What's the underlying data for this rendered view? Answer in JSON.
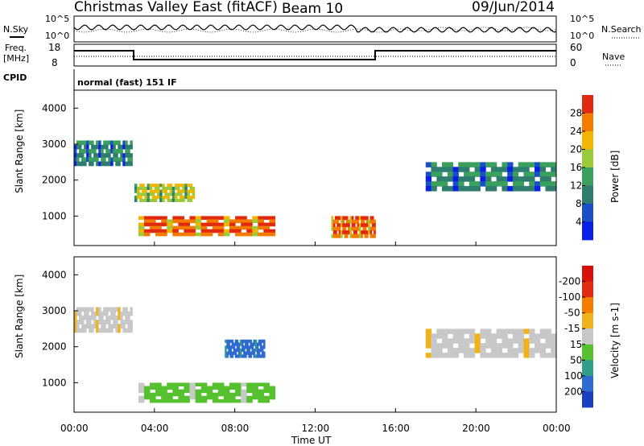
{
  "header": {
    "station": "Christmas Valley East (fitACF)",
    "beam": "Beam 10",
    "date": "09/Jun/2014"
  },
  "noise_panel": {
    "left_label": "N.Sky",
    "right_label": "N.Search",
    "left_ticks": [
      "10^5",
      "10^0"
    ],
    "right_ticks": [
      "10^5",
      "10^0"
    ]
  },
  "freq_panel": {
    "left_label_line1": "Freq.",
    "left_label_line2": "[MHz]",
    "right_label": "Nave",
    "left_ticks": [
      "18",
      "8"
    ],
    "right_ticks": [
      "60",
      "0"
    ]
  },
  "cpid": {
    "label": "CPID",
    "value": "normal (fast) 151 IF"
  },
  "time_axis": {
    "title": "Time UT",
    "ticks": [
      "00:00",
      "04:00",
      "08:00",
      "12:00",
      "16:00",
      "20:00",
      "00:00"
    ]
  },
  "chart_data": [
    {
      "type": "heatmap",
      "name": "power",
      "ylabel": "Slant Range [km]",
      "ylim": [
        180,
        4500
      ],
      "yticks": [
        1000,
        2000,
        3000,
        4000
      ],
      "x_range_hours": [
        0,
        24
      ],
      "colorbar": {
        "label": "Power [dB]",
        "ticks": [
          "4",
          "8",
          "12",
          "16",
          "20",
          "24",
          "28"
        ],
        "colors": [
          "#0a1fe8",
          "#1b4fc8",
          "#2e7d6e",
          "#3ba05e",
          "#9acb3a",
          "#f4b400",
          "#f47a00",
          "#e02a10"
        ]
      },
      "features": [
        {
          "t_start": 0.0,
          "t_end": 2.9,
          "range_start": 2400,
          "range_end": 3100,
          "level": "medium"
        },
        {
          "t_start": 3.0,
          "t_end": 6.0,
          "range_start": 1400,
          "range_end": 1900,
          "level": "high"
        },
        {
          "t_start": 3.2,
          "t_end": 10.0,
          "range_start": 450,
          "range_end": 1000,
          "level": "very high"
        },
        {
          "t_start": 12.8,
          "t_end": 15.0,
          "range_start": 400,
          "range_end": 1000,
          "level": "very high"
        },
        {
          "t_start": 17.5,
          "t_end": 24.0,
          "range_start": 1700,
          "range_end": 2500,
          "level": "medium"
        }
      ]
    },
    {
      "type": "heatmap",
      "name": "velocity",
      "ylabel": "Slant Range [km]",
      "ylim": [
        180,
        4500
      ],
      "yticks": [
        1000,
        2000,
        3000,
        4000
      ],
      "x_range_hours": [
        0,
        24
      ],
      "colorbar": {
        "label": "Velocity [m s-1]",
        "ticks": [
          "200",
          "100",
          "50",
          "15",
          "-15",
          "-50",
          "-100",
          "-200"
        ],
        "colors": [
          "#1c3fbf",
          "#2f6bd0",
          "#2f9e8a",
          "#55c12e",
          "#c8c8c8",
          "#f2b21b",
          "#f47d00",
          "#e22a10",
          "#d8100a"
        ]
      },
      "features": [
        {
          "t_start": 0.0,
          "t_end": 2.9,
          "range_start": 2400,
          "range_end": 3100,
          "velocity": "-15 to 15"
        },
        {
          "t_start": 3.2,
          "t_end": 10.0,
          "range_start": 450,
          "range_end": 1000,
          "velocity": "15 to 50"
        },
        {
          "t_start": 7.5,
          "t_end": 9.5,
          "range_start": 1700,
          "range_end": 2200,
          "velocity": "100 to 200"
        },
        {
          "t_start": 17.5,
          "t_end": 24.0,
          "range_start": 1700,
          "range_end": 2500,
          "velocity": "-15 to 15"
        }
      ]
    }
  ]
}
